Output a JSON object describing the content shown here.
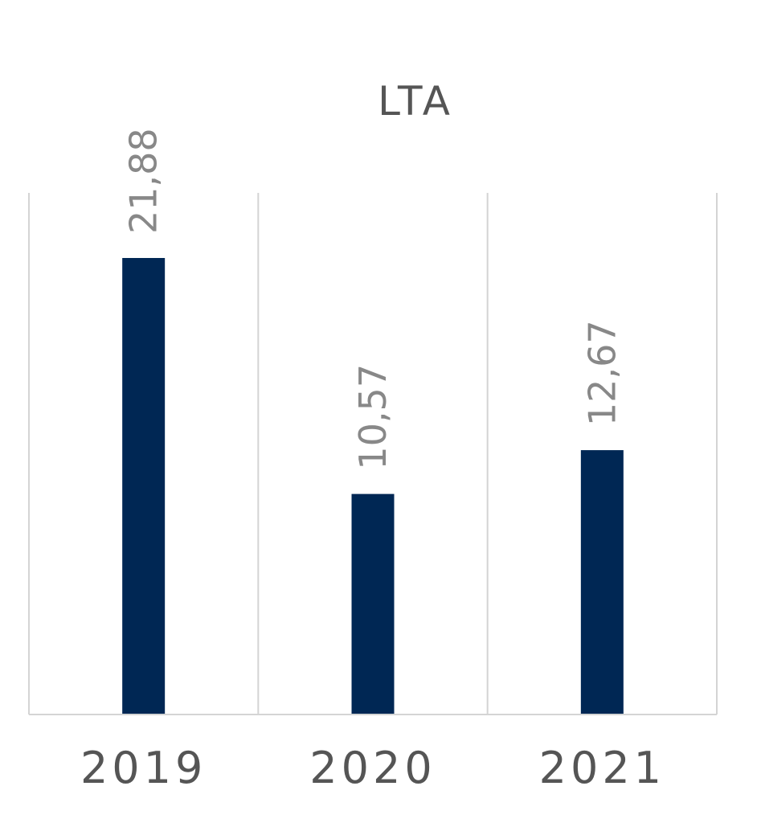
{
  "chart_data": {
    "type": "bar",
    "title": "LTA",
    "categories": [
      "2019",
      "2020",
      "2021"
    ],
    "values": [
      21.88,
      10.57,
      12.67
    ],
    "data_labels": [
      "21,88",
      "10,57",
      "12,67"
    ],
    "xlabel": "",
    "ylabel": "",
    "ylim": [
      0,
      25
    ],
    "grid": "vertical category separators",
    "legend": "none",
    "bar_color": "#002754",
    "axis_color": "#d4d4d4",
    "text_color": "#555555",
    "data_label_color": "#888888"
  }
}
